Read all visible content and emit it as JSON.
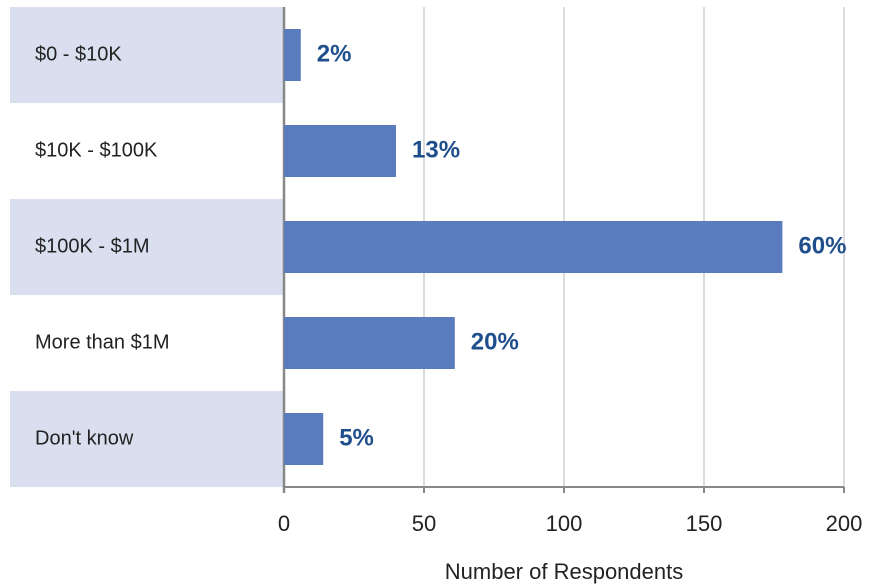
{
  "chart_data": {
    "type": "bar",
    "orientation": "horizontal",
    "categories": [
      "$0 - $10K",
      "$10K - $100K",
      "$100K - $1M",
      "More than $1M",
      "Don't know"
    ],
    "values": [
      6,
      40,
      178,
      61,
      14
    ],
    "value_labels": [
      "2%",
      "13%",
      "60%",
      "20%",
      "5%"
    ],
    "color": "#5b7bbf",
    "xlabel": "Number of Respondents",
    "xlim": [
      0,
      200
    ],
    "xticks": [
      0,
      50,
      100,
      150,
      200
    ],
    "grid": true
  }
}
